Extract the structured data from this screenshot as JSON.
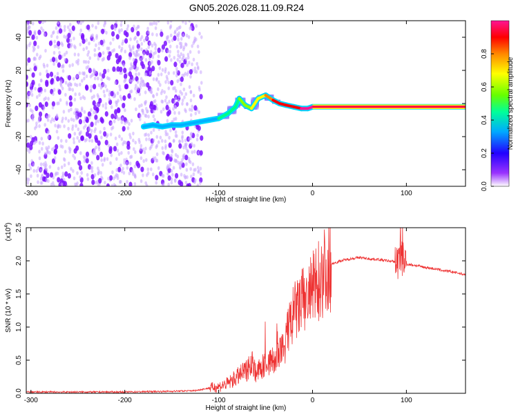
{
  "title": "GN05.2026.028.11.09.R24",
  "colors": {
    "snr_line": "#ee3333",
    "spectrogram_noise": "#8a2be2",
    "spectrogram_peak": "#ff2020",
    "axis": "#000000"
  },
  "chart_data": [
    {
      "type": "heatmap",
      "title": "GN05.2026.028.11.09.R24",
      "xlabel": "Height of straight line (km)",
      "ylabel": "Frequency (Hz)",
      "xlim": [
        -305,
        163
      ],
      "ylim": [
        -50,
        50
      ],
      "xticks": [
        -300,
        -200,
        -100,
        0,
        100
      ],
      "yticks": [
        -40,
        -20,
        0,
        20,
        40
      ],
      "colorbar": {
        "label": "Normalized spectral amplitude",
        "range": [
          0,
          1
        ],
        "ticks": [
          "0.0",
          "0.2",
          "0.4",
          "0.6",
          "0.8"
        ],
        "colormap": [
          "#ffffff",
          "#6600ff",
          "#0000ff",
          "#00ccff",
          "#00ff66",
          "#aaff00",
          "#ffff00",
          "#ff8800",
          "#ff0000",
          "#ff1493"
        ]
      },
      "noise_region_x": [
        -305,
        -118
      ],
      "ridge": [
        {
          "x": -180,
          "y": -14,
          "a": 0.35
        },
        {
          "x": -170,
          "y": -13,
          "a": 0.35
        },
        {
          "x": -160,
          "y": -14,
          "a": 0.35
        },
        {
          "x": -150,
          "y": -13,
          "a": 0.38
        },
        {
          "x": -140,
          "y": -13,
          "a": 0.38
        },
        {
          "x": -130,
          "y": -12,
          "a": 0.35
        },
        {
          "x": -120,
          "y": -11,
          "a": 0.38
        },
        {
          "x": -110,
          "y": -10,
          "a": 0.4
        },
        {
          "x": -100,
          "y": -9,
          "a": 0.42
        },
        {
          "x": -90,
          "y": -6,
          "a": 0.45
        },
        {
          "x": -82,
          "y": -2,
          "a": 0.5
        },
        {
          "x": -78,
          "y": 3,
          "a": 0.5
        },
        {
          "x": -72,
          "y": -1,
          "a": 0.55
        },
        {
          "x": -65,
          "y": -3,
          "a": 0.6
        },
        {
          "x": -58,
          "y": 3,
          "a": 0.65
        },
        {
          "x": -50,
          "y": 5,
          "a": 0.7
        },
        {
          "x": -42,
          "y": 2,
          "a": 0.85
        },
        {
          "x": -35,
          "y": 0,
          "a": 0.9
        },
        {
          "x": -28,
          "y": -1,
          "a": 0.9
        },
        {
          "x": -20,
          "y": -2,
          "a": 0.9
        },
        {
          "x": -12,
          "y": -3,
          "a": 0.92
        },
        {
          "x": -5,
          "y": -3,
          "a": 0.95
        },
        {
          "x": 0,
          "y": -2,
          "a": 1.0
        },
        {
          "x": 163,
          "y": -2,
          "a": 1.0
        }
      ]
    },
    {
      "type": "line",
      "xlabel": "Height of straight line (km)",
      "ylabel": "SNR (10 * v/v)",
      "multiplier": "(x10",
      "multiplier_exp": "4",
      "xlim": [
        -305,
        163
      ],
      "ylim": [
        0,
        2.5
      ],
      "xticks": [
        -300,
        -200,
        -100,
        0,
        100
      ],
      "yticks": [
        "0.0",
        "0.5",
        "1.0",
        "1.5",
        "2.0",
        "2.5"
      ],
      "series": [
        {
          "color": "#ee3333",
          "x": [
            -305,
            -250,
            -200,
            -150,
            -125,
            -110,
            -100,
            -90,
            -80,
            -70,
            -65,
            -60,
            -50,
            -40,
            -30,
            -25,
            -20,
            -15,
            -10,
            -5,
            0,
            10,
            20,
            30,
            40,
            50,
            60,
            70,
            80,
            90,
            95,
            100,
            110,
            120,
            130,
            140,
            150,
            163
          ],
          "y": [
            0.02,
            0.02,
            0.02,
            0.03,
            0.04,
            0.08,
            0.1,
            0.15,
            0.25,
            0.35,
            0.5,
            0.3,
            0.45,
            0.5,
            0.7,
            1.0,
            1.2,
            1.3,
            1.4,
            1.45,
            1.55,
            1.8,
            1.95,
            2.0,
            2.03,
            2.05,
            2.03,
            2.02,
            2.0,
            1.98,
            2.05,
            1.95,
            1.93,
            1.9,
            1.88,
            1.85,
            1.83,
            1.79
          ]
        }
      ]
    }
  ]
}
